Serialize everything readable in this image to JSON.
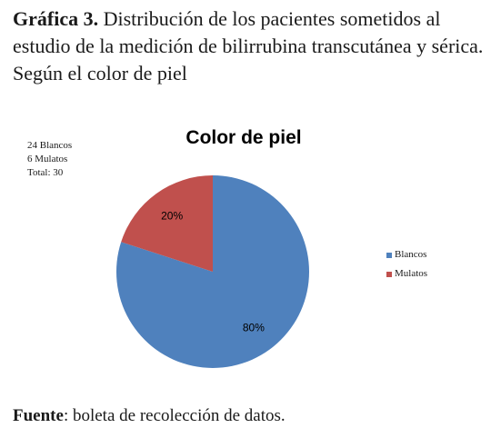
{
  "caption": {
    "label": "Gráfica 3.",
    "text": "Distribución de los pacientes sometidos al estudio de la medición de bilirrubina transcutánea y sérica. Según el color de piel"
  },
  "notes": [
    "24 Blancos",
    "6 Mulatos",
    "Total: 30"
  ],
  "source": {
    "label": "Fuente",
    "text": ": boleta de recolección de datos."
  },
  "chart_data": {
    "type": "pie",
    "title": "Color de piel",
    "categories": [
      "Blancos",
      "Mulatos"
    ],
    "values": [
      80,
      20
    ],
    "data_labels": [
      "80%",
      "20%"
    ],
    "colors": [
      "#4f81bd",
      "#c0504d"
    ],
    "legend": "right"
  }
}
